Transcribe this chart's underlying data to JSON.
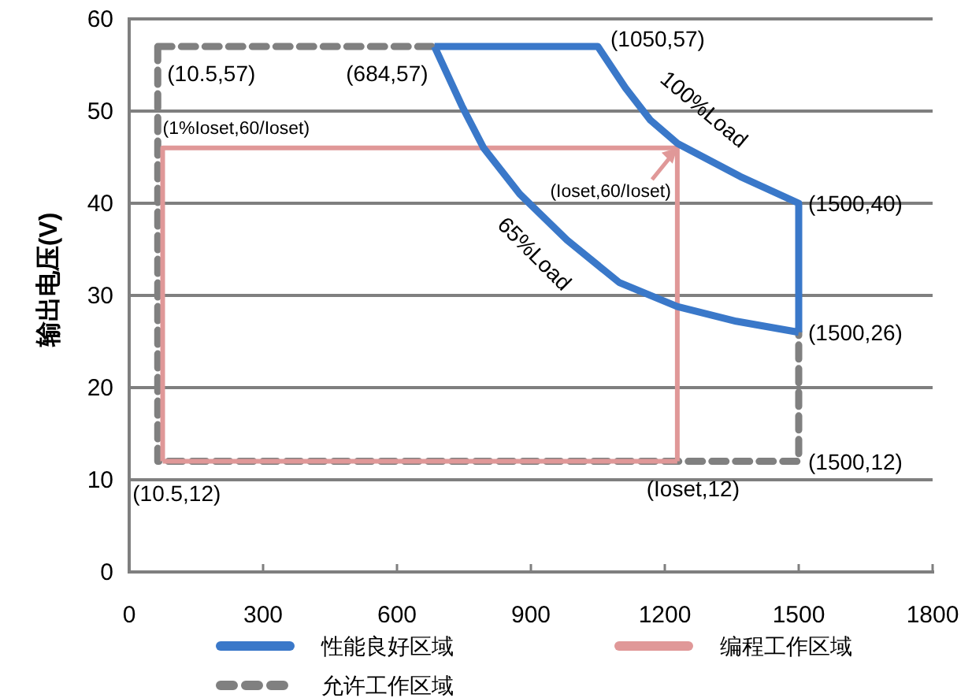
{
  "chart_data": {
    "type": "line",
    "ylabel": "输出电压(V)",
    "xlim": [
      0,
      1800
    ],
    "xticks": [
      0,
      300,
      600,
      900,
      1200,
      1500,
      1800
    ],
    "ylim": [
      0,
      60
    ],
    "yticks": [
      0,
      10,
      20,
      30,
      40,
      50,
      60
    ],
    "grid": "y",
    "legend": "bottom",
    "marker": "none",
    "series": [
      {
        "name": "性能良好区域",
        "color": "#3a78c9",
        "line_style": "solid",
        "x": [
          684,
          1050,
          1112,
          1168,
          1228,
          1369,
          1500,
          1500,
          null,
          684,
          745,
          794,
          875,
          981,
          1098,
          1228,
          1360,
          1500
        ],
        "values": [
          57,
          57,
          52.5,
          49,
          46.5,
          42.9,
          40,
          26,
          null,
          57,
          50.6,
          46,
          41,
          36,
          31.4,
          28.8,
          27.2,
          26
        ]
      },
      {
        "name": "编程工作区域",
        "color": "#e09898",
        "line_style": "solid",
        "x": [
          75,
          75,
          1228,
          1228,
          null,
          75,
          1228
        ],
        "values": [
          12,
          46,
          46,
          12,
          null,
          12,
          12
        ]
      },
      {
        "name": "允许工作区域",
        "color": "#808080",
        "line_style": "dashed",
        "x": [
          64,
          64,
          1500,
          1500,
          null,
          64,
          684
        ],
        "values": [
          57,
          12,
          12,
          26,
          null,
          57,
          57
        ]
      }
    ],
    "annotations": [
      {
        "text": "(10.5,57)",
        "x": 64,
        "y": 57
      },
      {
        "text": "(684,57)",
        "x": 684,
        "y": 57
      },
      {
        "text": "(1050,57)",
        "x": 1050,
        "y": 57
      },
      {
        "text": "(1500,40)",
        "x": 1500,
        "y": 40
      },
      {
        "text": "(1500,26)",
        "x": 1500,
        "y": 26
      },
      {
        "text": "(1500,12)",
        "x": 1500,
        "y": 12
      },
      {
        "text": "(Ioset,12)",
        "x": 1228,
        "y": 12
      },
      {
        "text": "(10.5,12)",
        "x": 64,
        "y": 12
      },
      {
        "text": "(1%Ioset,60/Ioset)",
        "x": 75,
        "y": 46
      },
      {
        "text": "(Ioset,60/Ioset)",
        "x": 1228,
        "y": 46
      },
      {
        "text": "100%Load",
        "x": 1228,
        "y": 46.5
      },
      {
        "text": "65%Load",
        "x": 981,
        "y": 36
      }
    ]
  }
}
